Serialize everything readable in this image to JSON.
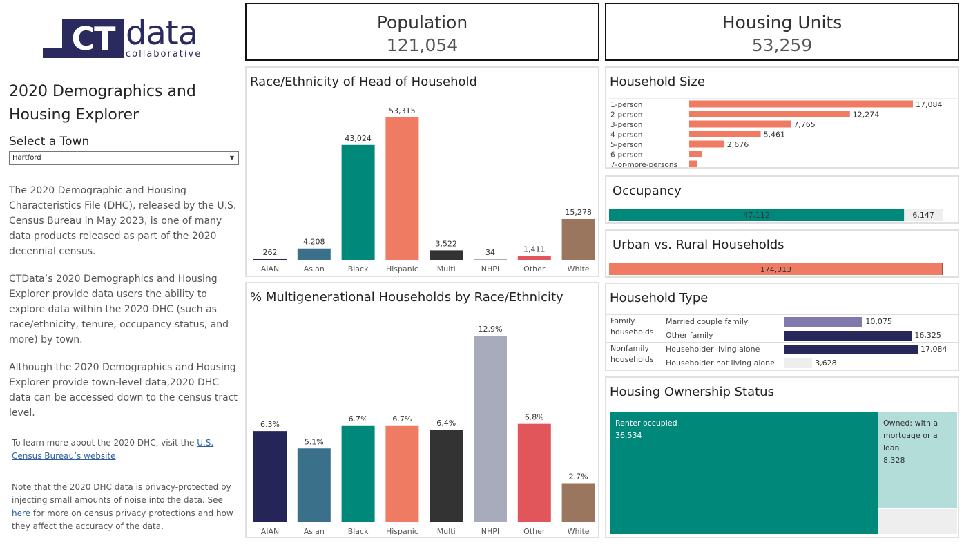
{
  "logo": {
    "mark": "CT",
    "word": "data",
    "sub": "collaborative"
  },
  "sidebar": {
    "title": "2020 Demographics and Housing Explorer",
    "select_label": "Select a Town",
    "town_selected": "Hartford",
    "para1": "The 2020 Demographic and Housing Characteristics File (DHC), released by the U.S. Census Bureau in May 2023, is one of many data products released as part of the 2020 decennial census.",
    "para2": "CTData’s 2020 Demographics and Housing Explorer provide data users the ability to explore data within the 2020 DHC (such as race/ethnicity, tenure, occupancy status, and more) by town.",
    "para3": "Although the 2020 Demographics and Housing Explorer provide town-level data,2020 DHC data can be accessed down to the census tract level.",
    "learn_prefix": "To learn more about the 2020 DHC, visit the ",
    "learn_link": "U.S. Census Bureau’s website",
    "learn_suffix": ".",
    "note_prefix": "Note that the 2020 DHC data is privacy-protected by injecting small amounts of noise into the data. See ",
    "note_link": "here",
    "note_suffix": " for more on census privacy protections and how they affect the accuracy of the data."
  },
  "kpis": {
    "population": {
      "title": "Population",
      "value": "121,054"
    },
    "housing": {
      "title": "Housing Units",
      "value": "53,259"
    }
  },
  "colors": {
    "AIAN": "#252557",
    "Asian": "#3b708a",
    "Black": "#00897b",
    "Hispanic": "#f07b63",
    "Multi": "#333333",
    "NHPI": "#a8abbb",
    "Other": "#e0565b",
    "White": "#9b765e",
    "salmon": "#f07b63",
    "teal": "#00897b",
    "lightgray": "#eeeeee",
    "lavender": "#8179ad",
    "navy": "#27275a",
    "teal_light": "#b3ddd9"
  },
  "chart_data": [
    {
      "type": "bar",
      "title": "Race/Ethnicity of Head of Household",
      "categories": [
        "AIAN",
        "Asian",
        "Black",
        "Hispanic",
        "Multi",
        "NHPI",
        "Other",
        "White"
      ],
      "values": [
        262,
        4208,
        43024,
        53315,
        3522,
        34,
        1411,
        15278
      ],
      "labels": [
        "262",
        "4,208",
        "43,024",
        "53,315",
        "3,522",
        "34",
        "1,411",
        "15,278"
      ],
      "ylim": [
        0,
        53315
      ]
    },
    {
      "type": "bar",
      "title": "% Multigenerational Households by Race/Ethnicity",
      "categories": [
        "AIAN",
        "Asian",
        "Black",
        "Hispanic",
        "Multi",
        "NHPI",
        "Other",
        "White"
      ],
      "values": [
        6.3,
        5.1,
        6.7,
        6.7,
        6.4,
        12.9,
        6.8,
        2.7
      ],
      "labels": [
        "6.3%",
        "5.1%",
        "6.7%",
        "6.7%",
        "6.4%",
        "12.9%",
        "6.8%",
        "2.7%"
      ],
      "ylim": [
        0,
        12.9
      ]
    },
    {
      "type": "bar",
      "orientation": "horizontal",
      "title": "Household Size",
      "categories": [
        "1-person",
        "2-person",
        "3-person",
        "4-person",
        "5-person",
        "6-person",
        "7-or-more-persons"
      ],
      "values": [
        17084,
        12274,
        7765,
        5461,
        2676,
        1000,
        600
      ],
      "labels": [
        "17,084",
        "12,274",
        "7,765",
        "5,461",
        "2,676",
        "",
        ""
      ]
    },
    {
      "type": "bar",
      "orientation": "horizontal-stacked",
      "title": "Occupancy",
      "values": [
        47112,
        6147
      ],
      "labels": [
        "47,112",
        "6,147"
      ]
    },
    {
      "type": "bar",
      "orientation": "horizontal",
      "title": "Urban vs. Rural Households",
      "values": [
        174313
      ],
      "labels": [
        "174,313"
      ]
    },
    {
      "type": "bar",
      "orientation": "horizontal",
      "title": "Household Type",
      "groups": [
        "Family households",
        "Nonfamily households"
      ],
      "categories": [
        "Married couple family",
        "Other family",
        "Householder living alone",
        "Householder not living alone"
      ],
      "values": [
        10075,
        16325,
        17084,
        3628
      ],
      "labels": [
        "10,075",
        "16,325",
        "17,084",
        "3,628"
      ]
    },
    {
      "type": "treemap",
      "title": "Housing Ownership Status",
      "categories": [
        "Renter occupied",
        "Owned: with a mortgage or a loan"
      ],
      "values": [
        36534,
        8328
      ],
      "labels": [
        "36,534",
        "8,328"
      ]
    }
  ]
}
